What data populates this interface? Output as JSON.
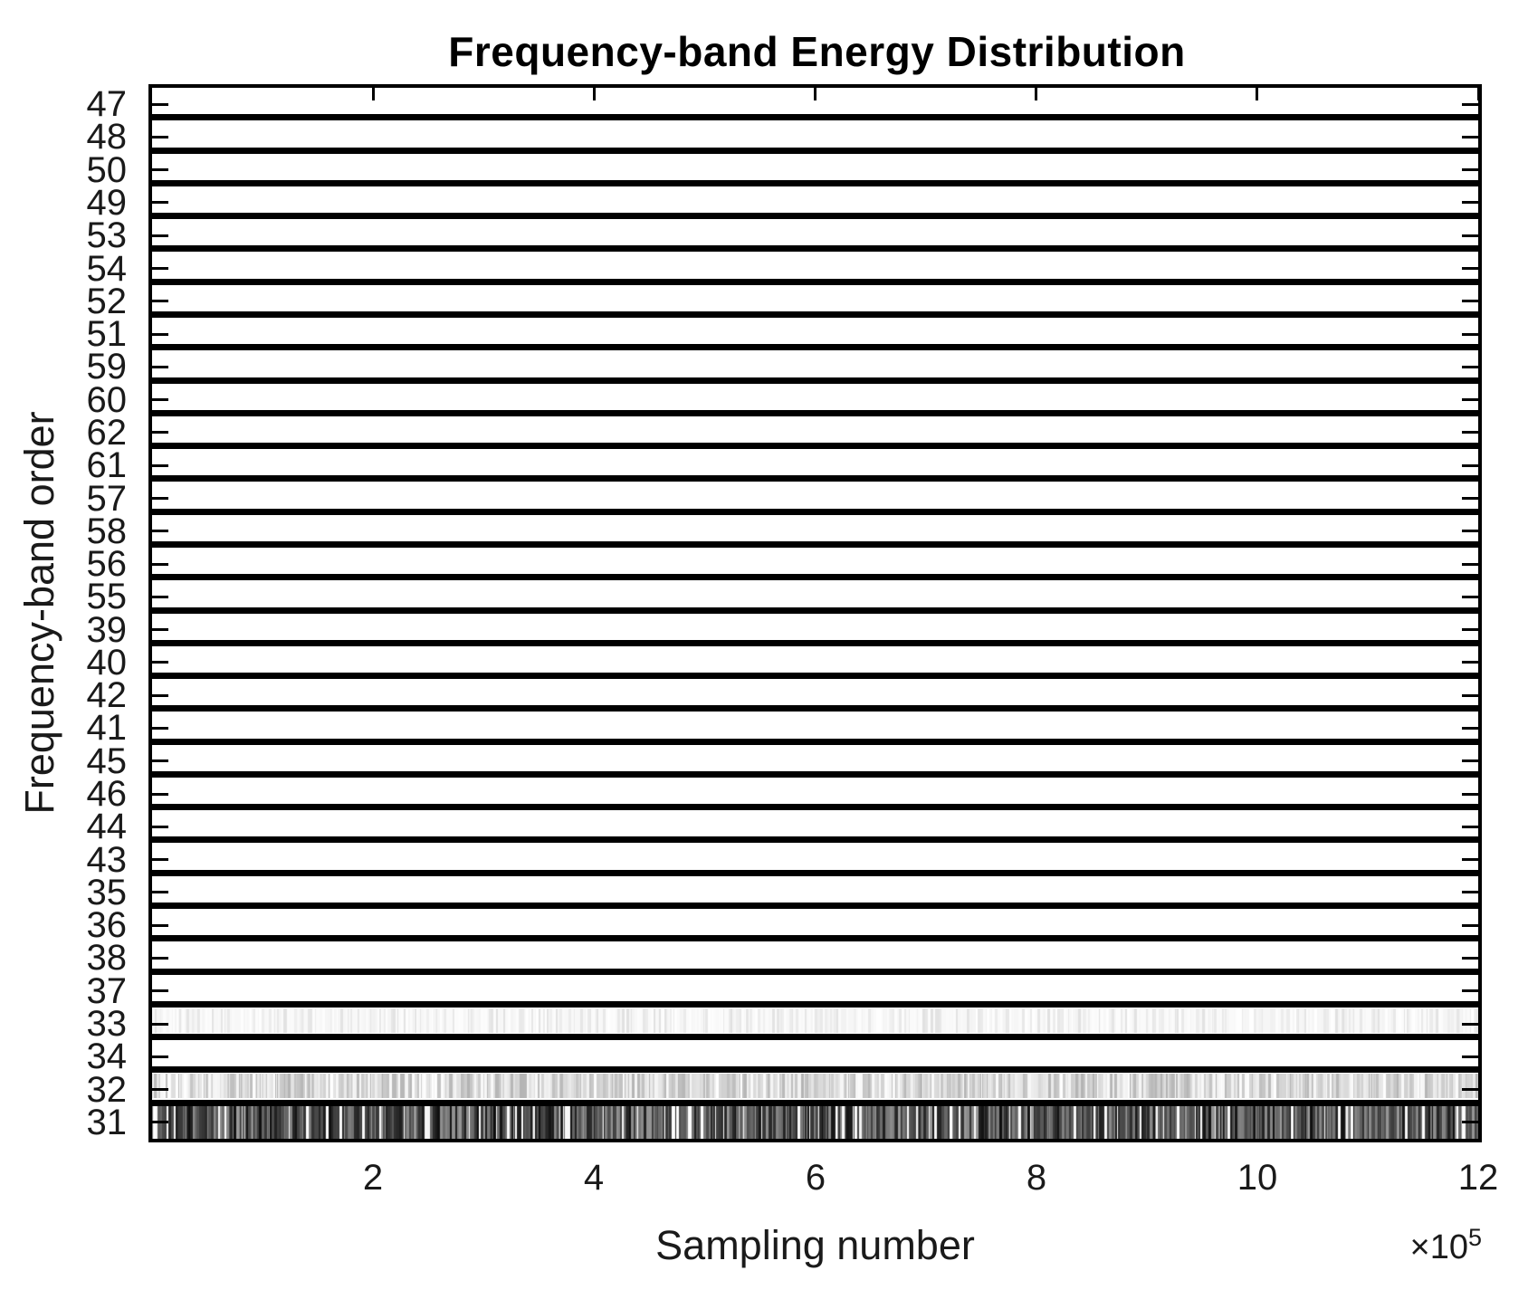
{
  "chart_data": {
    "type": "heatmap",
    "title": "Frequency-band Energy Distribution",
    "xlabel": "Sampling number",
    "ylabel": "Frequency-band order",
    "x_axis": {
      "ticks": [
        2,
        4,
        6,
        8,
        10,
        12
      ],
      "multiplier_prefix": "×10",
      "multiplier_exponent": "5",
      "xlim": [
        0,
        1200000
      ]
    },
    "bands": [
      {
        "label": "47",
        "pattern": "flat"
      },
      {
        "label": "48",
        "pattern": "flat"
      },
      {
        "label": "50",
        "pattern": "flat"
      },
      {
        "label": "49",
        "pattern": "flat"
      },
      {
        "label": "53",
        "pattern": "flat"
      },
      {
        "label": "54",
        "pattern": "flat"
      },
      {
        "label": "52",
        "pattern": "flat"
      },
      {
        "label": "51",
        "pattern": "flat"
      },
      {
        "label": "59",
        "pattern": "flat"
      },
      {
        "label": "60",
        "pattern": "flat"
      },
      {
        "label": "62",
        "pattern": "flat"
      },
      {
        "label": "61",
        "pattern": "flat"
      },
      {
        "label": "57",
        "pattern": "flat"
      },
      {
        "label": "58",
        "pattern": "flat"
      },
      {
        "label": "56",
        "pattern": "flat"
      },
      {
        "label": "55",
        "pattern": "flat"
      },
      {
        "label": "39",
        "pattern": "flat"
      },
      {
        "label": "40",
        "pattern": "flat"
      },
      {
        "label": "42",
        "pattern": "flat"
      },
      {
        "label": "41",
        "pattern": "flat"
      },
      {
        "label": "45",
        "pattern": "flat"
      },
      {
        "label": "46",
        "pattern": "flat"
      },
      {
        "label": "44",
        "pattern": "flat"
      },
      {
        "label": "43",
        "pattern": "flat"
      },
      {
        "label": "35",
        "pattern": "flat"
      },
      {
        "label": "36",
        "pattern": "flat"
      },
      {
        "label": "38",
        "pattern": "flat"
      },
      {
        "label": "37",
        "pattern": "flat"
      },
      {
        "label": "33",
        "pattern": "faint"
      },
      {
        "label": "34",
        "pattern": "flat"
      },
      {
        "label": "32",
        "pattern": "light"
      },
      {
        "label": "31",
        "pattern": "dark",
        "baseline_bar": false
      }
    ],
    "patterns": {
      "flat": {
        "type": "blank"
      },
      "faint": {
        "type": "barcode",
        "white_prob": 0.55,
        "lum_min": 0.88,
        "lum_max": 0.98,
        "full_height": false,
        "seed": 21
      },
      "light": {
        "type": "barcode",
        "white_prob": 0.18,
        "lum_min": 0.7,
        "lum_max": 0.96,
        "full_height": false,
        "seed": 13
      },
      "dark": {
        "type": "barcode",
        "white_prob": 0.11,
        "lum_min": 0.05,
        "lum_max": 0.62,
        "full_height": true,
        "seed": 7
      }
    },
    "colors": {
      "ink": "#000000",
      "background": "#ffffff",
      "baseline_bar": "#000000"
    },
    "grid": false,
    "legend": null
  }
}
